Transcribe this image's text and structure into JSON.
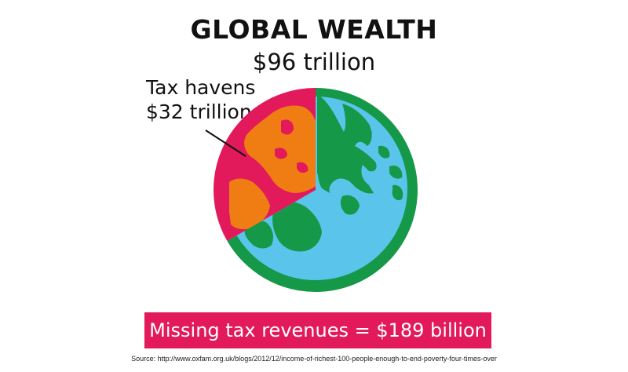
{
  "header": {
    "title": "GLOBAL WEALTH",
    "total": "$96 trillion"
  },
  "callout": {
    "label": "Tax havens",
    "value": "$32 trillion"
  },
  "banner": {
    "text": "Missing tax revenues = $189 billion"
  },
  "source": {
    "text": "Source: http://www.oxfam.org.uk/blogs/2012/12/income-of-richest-100-people-enough-to-end-poverty-four-times-over"
  },
  "colors": {
    "tax_havens_slice": "#e2195a",
    "tax_havens_land": "#ef7d14",
    "ocean": "#5bc4ea",
    "land": "#159848",
    "banner": "#e2195a"
  },
  "chart_data": {
    "type": "pie",
    "title": "GLOBAL WEALTH",
    "subtitle": "$96 trillion",
    "slices": [
      {
        "label": "Tax havens",
        "value": 32
      },
      {
        "value": 64
      }
    ],
    "unit": "trillion USD"
  }
}
